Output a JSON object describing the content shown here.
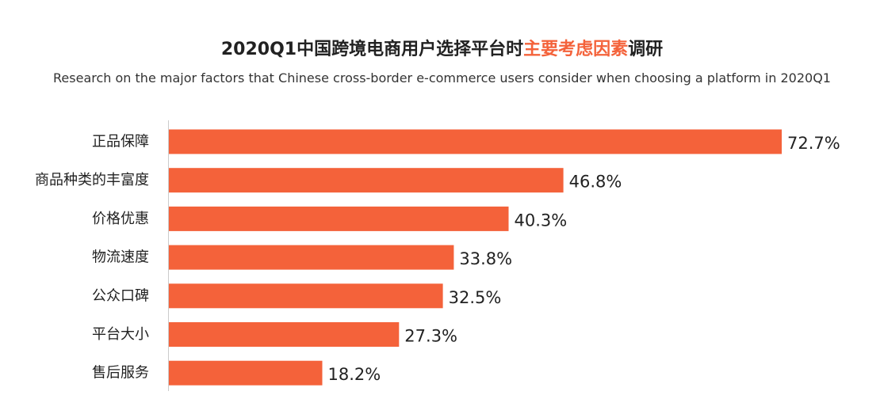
{
  "title": {
    "prefix": "2020Q1中国跨境电商用户选择平台时",
    "highlight": "主要考虑因素",
    "suffix": "调研"
  },
  "subtitle": "Research on the major factors that Chinese cross-border e-commerce users consider when choosing a platform in 2020Q1",
  "colors": {
    "bar": "#f4623a",
    "axis": "#cccccc",
    "highlight": "#f4623a"
  },
  "chart_data": {
    "type": "bar",
    "orientation": "horizontal",
    "title": "2020Q1中国跨境电商用户选择平台时主要考虑因素调研",
    "subtitle": "Research on the major factors that Chinese cross-border e-commerce users consider when choosing a platform in 2020Q1",
    "categories": [
      "正品保障",
      "商品种类的丰富度",
      "价格优惠",
      "物流速度",
      "公众口碑",
      "平台大小",
      "售后服务"
    ],
    "values": [
      72.7,
      46.8,
      40.3,
      33.8,
      32.5,
      27.3,
      18.2
    ],
    "value_labels": [
      "72.7%",
      "46.8%",
      "40.3%",
      "33.8%",
      "32.5%",
      "27.3%",
      "18.2%"
    ],
    "unit": "%",
    "xlim": [
      0,
      72.7
    ],
    "grid": false,
    "legend": "none"
  }
}
